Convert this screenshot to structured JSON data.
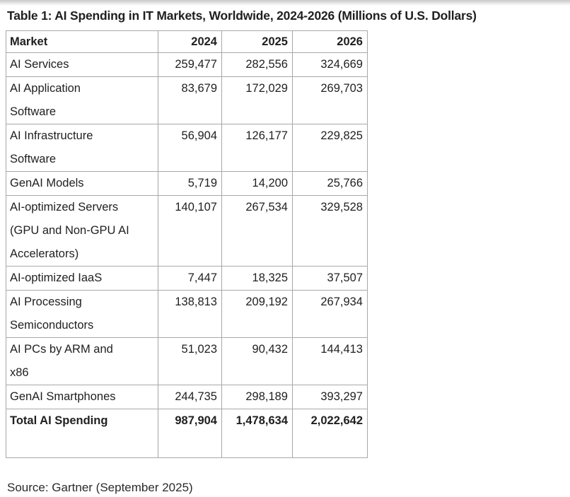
{
  "page": {
    "title": "Table 1: AI Spending in IT Markets, Worldwide, 2024-2026 (Millions of U.S. Dollars)",
    "source": "Source: Gartner (September 2025)"
  },
  "colors": {
    "text": "#1f1f1f",
    "table_border": "#a8a8a8",
    "background": "#ffffff"
  },
  "chart_data": {
    "type": "table",
    "title": "Table 1: AI Spending in IT Markets, Worldwide, 2024-2026 (Millions of U.S. Dollars)",
    "units": "Millions of U.S. Dollars",
    "columns": [
      "Market",
      "2024",
      "2025",
      "2026"
    ],
    "rows": [
      {
        "market": "AI Services",
        "values": [
          "259,477",
          "282,556",
          "324,669"
        ]
      },
      {
        "market": "AI Application\nSoftware",
        "values": [
          "83,679",
          "172,029",
          "269,703"
        ]
      },
      {
        "market": "AI Infrastructure\nSoftware",
        "values": [
          "56,904",
          "126,177",
          "229,825"
        ]
      },
      {
        "market": "GenAI Models",
        "values": [
          "5,719",
          "14,200",
          "25,766"
        ]
      },
      {
        "market": "AI-optimized Servers\n(GPU and Non-GPU AI\nAccelerators)",
        "values": [
          "140,107",
          "267,534",
          "329,528"
        ]
      },
      {
        "market": "AI-optimized IaaS",
        "values": [
          "7,447",
          "18,325",
          "37,507"
        ]
      },
      {
        "market": "AI Processing\nSemiconductors",
        "values": [
          "138,813",
          "209,192",
          "267,934"
        ]
      },
      {
        "market": "AI PCs by ARM and\nx86",
        "values": [
          "51,023",
          "90,432",
          "144,413"
        ]
      },
      {
        "market": "GenAI Smartphones",
        "values": [
          "244,735",
          "298,189",
          "393,297"
        ]
      }
    ],
    "total_row": {
      "market": "Total AI Spending",
      "values": [
        "987,904",
        "1,478,634",
        "2,022,642"
      ]
    },
    "source": "Source: Gartner (September 2025)",
    "layout": {
      "grid": true,
      "legend": "none",
      "number_alignment": "right"
    }
  }
}
